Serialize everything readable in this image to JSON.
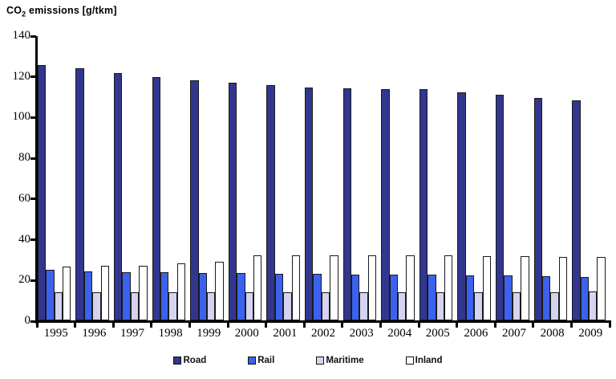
{
  "title": {
    "prefix": "CO",
    "sub": "2",
    "suffix": " emissions [g/tkm]"
  },
  "chart_data": {
    "type": "bar",
    "title": "CO2 emissions [g/tkm]",
    "categories": [
      "1995",
      "1996",
      "1997",
      "1998",
      "1999",
      "2000",
      "2001",
      "2002",
      "2003",
      "2004",
      "2005",
      "2006",
      "2007",
      "2008",
      "2009"
    ],
    "series": [
      {
        "name": "Road",
        "color": "#32368f",
        "values": [
          125.5,
          123.8,
          121.6,
          119.6,
          118.1,
          116.6,
          115.4,
          114.5,
          113.9,
          113.6,
          113.4,
          112.1,
          110.9,
          109.4,
          108.2
        ]
      },
      {
        "name": "Rail",
        "color": "#3b62ee",
        "values": [
          24.8,
          24.2,
          23.8,
          23.6,
          23.4,
          23.2,
          23.0,
          22.8,
          22.6,
          22.5,
          22.3,
          22.1,
          21.9,
          21.7,
          21.3
        ]
      },
      {
        "name": "Maritime",
        "color": "#d4d4f0",
        "values": [
          13.9,
          14.0,
          13.9,
          13.9,
          14.0,
          13.9,
          14.0,
          13.9,
          14.0,
          13.9,
          14.0,
          13.9,
          14.0,
          14.0,
          14.2
        ]
      },
      {
        "name": "Inland",
        "color": "#ffffff",
        "values": [
          26.6,
          26.9,
          26.7,
          27.9,
          28.9,
          32.0,
          32.0,
          31.9,
          31.9,
          32.0,
          32.0,
          31.7,
          31.5,
          31.3,
          31.3
        ]
      }
    ],
    "xlabel": "",
    "ylabel": "CO2 emissions [g/tkm]",
    "ylim": [
      0,
      140
    ],
    "ytick_step": 20,
    "grid": false,
    "legend_position": "bottom",
    "bar_border_color": "#1a1a1a",
    "axis_color": "#000000"
  }
}
